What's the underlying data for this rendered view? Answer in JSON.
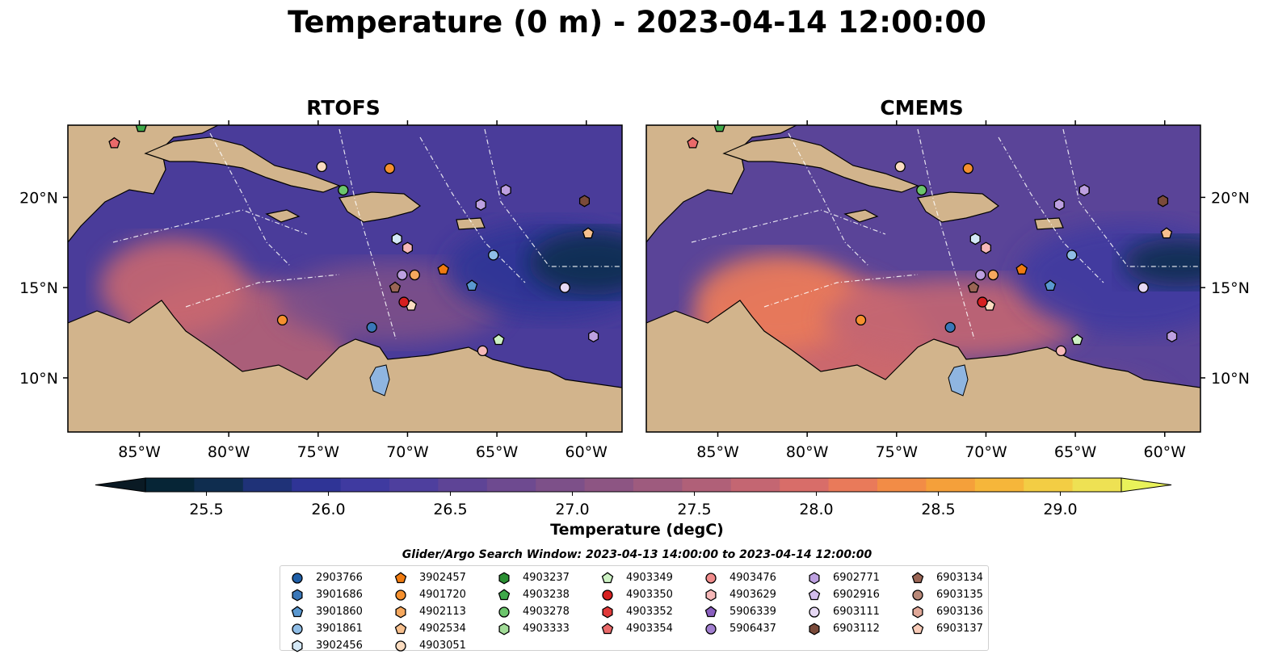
{
  "title": "Temperature (0 m) - 2023-04-14 12:00:00",
  "panels": [
    {
      "title": "RTOFS"
    },
    {
      "title": "CMEMS"
    }
  ],
  "axes": {
    "lon_ticks": [
      "85°W",
      "80°W",
      "75°W",
      "70°W",
      "65°W",
      "60°W"
    ],
    "lat_ticks": [
      "20°N",
      "15°N",
      "10°N"
    ]
  },
  "colorbar": {
    "label": "Temperature (degC)",
    "ticks": [
      "25.5",
      "26.0",
      "26.5",
      "27.0",
      "27.5",
      "28.0",
      "28.5",
      "29.0"
    ],
    "colors": [
      "#062536",
      "#0f2d4f",
      "#1f3278",
      "#2f3496",
      "#3f3aa0",
      "#4e3f9e",
      "#5e4496",
      "#6e4a90",
      "#7d5089",
      "#8d5583",
      "#9e5b7e",
      "#b06078",
      "#c46672",
      "#d86d69",
      "#e97a5a",
      "#f28c46",
      "#f5a03a",
      "#f6b63a",
      "#f3cd44",
      "#eee153"
    ],
    "extend_low": "#0a1a24",
    "extend_high": "#e9f25a"
  },
  "legend": {
    "title": "Glider/Argo Search Window: 2023-04-13 14:00:00 to 2023-04-14 12:00:00",
    "columns": [
      [
        {
          "id": "2903766",
          "marker": "circle",
          "color": "#1f5fa8"
        },
        {
          "id": "3901686",
          "marker": "hexagon",
          "color": "#3a77b8"
        },
        {
          "id": "3901860",
          "marker": "pentagon",
          "color": "#5a98d0"
        },
        {
          "id": "3901861",
          "marker": "circle",
          "color": "#8fbde6"
        },
        {
          "id": "3902456",
          "marker": "hexagon",
          "color": "#d4e8f6"
        }
      ],
      [
        {
          "id": "3902457",
          "marker": "pentagon",
          "color": "#f07b10"
        },
        {
          "id": "4901720",
          "marker": "circle",
          "color": "#f5902e"
        },
        {
          "id": "4902113",
          "marker": "hexagon",
          "color": "#f6a85e"
        },
        {
          "id": "4902534",
          "marker": "pentagon",
          "color": "#f7c08e"
        },
        {
          "id": "4903051",
          "marker": "circle",
          "color": "#fbdcc0"
        }
      ],
      [
        {
          "id": "4903237",
          "marker": "hexagon",
          "color": "#2a8f32"
        },
        {
          "id": "4903238",
          "marker": "pentagon",
          "color": "#3fa84a"
        },
        {
          "id": "4903278",
          "marker": "circle",
          "color": "#6cc56c"
        },
        {
          "id": "4903333",
          "marker": "hexagon",
          "color": "#a2dc98"
        }
      ],
      [
        {
          "id": "4903349",
          "marker": "pentagon",
          "color": "#cdf2c4"
        },
        {
          "id": "4903350",
          "marker": "circle",
          "color": "#d62020"
        },
        {
          "id": "4903352",
          "marker": "hexagon",
          "color": "#e03a3a"
        },
        {
          "id": "4903354",
          "marker": "pentagon",
          "color": "#ea6a6a"
        }
      ],
      [
        {
          "id": "4903476",
          "marker": "circle",
          "color": "#f08c8c"
        },
        {
          "id": "4903629",
          "marker": "hexagon",
          "color": "#f6b8b8"
        },
        {
          "id": "5906339",
          "marker": "pentagon",
          "color": "#8a5fbf"
        },
        {
          "id": "5906437",
          "marker": "circle",
          "color": "#a27fd0"
        }
      ],
      [
        {
          "id": "6902771",
          "marker": "hexagon",
          "color": "#bda0e0"
        },
        {
          "id": "6902916",
          "marker": "pentagon",
          "color": "#d2bdec"
        },
        {
          "id": "6903111",
          "marker": "circle",
          "color": "#e6d8f4"
        },
        {
          "id": "6903112",
          "marker": "hexagon",
          "color": "#7a4a3a"
        }
      ],
      [
        {
          "id": "6903134",
          "marker": "pentagon",
          "color": "#9a6555"
        },
        {
          "id": "6903135",
          "marker": "circle",
          "color": "#b88878"
        },
        {
          "id": "6903136",
          "marker": "hexagon",
          "color": "#e0a898"
        },
        {
          "id": "6903137",
          "marker": "pentagon",
          "color": "#f8cbb8"
        }
      ]
    ]
  },
  "chart_data": {
    "type": "heatmap",
    "title": "Temperature (0 m) - 2023-04-14 12:00:00",
    "panels": [
      "RTOFS",
      "CMEMS"
    ],
    "xlim": [
      -89,
      -58
    ],
    "ylim": [
      7,
      24
    ],
    "x_ticks": [
      -85,
      -80,
      -75,
      -70,
      -65,
      -60
    ],
    "y_ticks": [
      10,
      15,
      20
    ],
    "colorbar_range": [
      25.25,
      29.25
    ],
    "colorbar_step": 0.25,
    "colorbar_label": "Temperature (degC)",
    "floats": [
      {
        "lon": -72.0,
        "lat": 12.8,
        "color": "#3a77b8",
        "marker": "circle"
      },
      {
        "lon": -70.6,
        "lat": 17.7,
        "color": "#d4e8f6",
        "marker": "hexagon"
      },
      {
        "lon": -66.4,
        "lat": 15.1,
        "color": "#5a98d0",
        "marker": "pentagon"
      },
      {
        "lon": -65.2,
        "lat": 16.8,
        "color": "#8fbde6",
        "marker": "circle"
      },
      {
        "lon": -68.0,
        "lat": 16.0,
        "color": "#f07b10",
        "marker": "pentagon"
      },
      {
        "lon": -71.0,
        "lat": 21.6,
        "color": "#f5902e",
        "marker": "circle"
      },
      {
        "lon": -77.0,
        "lat": 13.2,
        "color": "#f5902e",
        "marker": "circle"
      },
      {
        "lon": -69.6,
        "lat": 15.7,
        "color": "#f6a85e",
        "marker": "circle"
      },
      {
        "lon": -59.9,
        "lat": 18.0,
        "color": "#f7c08e",
        "marker": "pentagon"
      },
      {
        "lon": -69.8,
        "lat": 14.0,
        "color": "#fbdcc0",
        "marker": "pentagon"
      },
      {
        "lon": -74.8,
        "lat": 21.7,
        "color": "#fbdcc0",
        "marker": "circle"
      },
      {
        "lon": -84.9,
        "lat": 23.9,
        "color": "#3fa84a",
        "marker": "pentagon"
      },
      {
        "lon": -73.6,
        "lat": 20.4,
        "color": "#6cc56c",
        "marker": "circle"
      },
      {
        "lon": -64.9,
        "lat": 12.1,
        "color": "#cdf2c4",
        "marker": "pentagon"
      },
      {
        "lon": -70.2,
        "lat": 14.2,
        "color": "#d62020",
        "marker": "circle"
      },
      {
        "lon": -86.4,
        "lat": 23.0,
        "color": "#ea6a6a",
        "marker": "pentagon"
      },
      {
        "lon": -65.8,
        "lat": 11.5,
        "color": "#f6b8b8",
        "marker": "circle"
      },
      {
        "lon": -70.0,
        "lat": 17.2,
        "color": "#f6b8b8",
        "marker": "hexagon"
      },
      {
        "lon": -70.3,
        "lat": 15.7,
        "color": "#bda0e0",
        "marker": "circle"
      },
      {
        "lon": -65.9,
        "lat": 19.6,
        "color": "#bda0e0",
        "marker": "hexagon"
      },
      {
        "lon": -64.5,
        "lat": 20.4,
        "color": "#bda0e0",
        "marker": "hexagon"
      },
      {
        "lon": -59.6,
        "lat": 12.3,
        "color": "#bda0e0",
        "marker": "hexagon"
      },
      {
        "lon": -61.2,
        "lat": 15.0,
        "color": "#e6d8f4",
        "marker": "circle"
      },
      {
        "lon": -60.1,
        "lat": 19.8,
        "color": "#7a4a3a",
        "marker": "hexagon"
      },
      {
        "lon": -70.7,
        "lat": 15.0,
        "color": "#9a6555",
        "marker": "pentagon"
      }
    ]
  }
}
